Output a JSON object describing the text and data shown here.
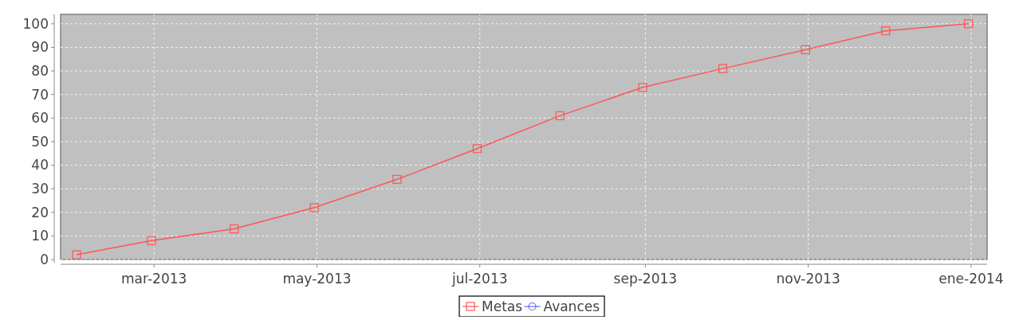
{
  "chart_data": {
    "type": "line",
    "x": [
      "2013-01-31",
      "2013-02-28",
      "2013-03-31",
      "2013-04-30",
      "2013-05-31",
      "2013-06-30",
      "2013-07-31",
      "2013-08-31",
      "2013-09-30",
      "2013-10-31",
      "2013-11-30",
      "2013-12-31"
    ],
    "series": [
      {
        "name": "Metas",
        "color": "#ff5555",
        "marker": "square",
        "values": [
          2,
          8,
          13,
          22,
          34,
          47,
          61,
          73,
          81,
          89,
          97,
          100
        ]
      },
      {
        "name": "Avances",
        "color": "#6666ff",
        "marker": "circle",
        "values": [
          null,
          null,
          null,
          null,
          null,
          null,
          null,
          null,
          null,
          null,
          null,
          null
        ]
      }
    ],
    "xlim": [
      "2013-01-25",
      "2014-01-07"
    ],
    "xticks": [
      {
        "value": "2013-03-01",
        "label": "mar-2013"
      },
      {
        "value": "2013-05-01",
        "label": "may-2013"
      },
      {
        "value": "2013-07-01",
        "label": "jul-2013"
      },
      {
        "value": "2013-09-01",
        "label": "sep-2013"
      },
      {
        "value": "2013-11-01",
        "label": "nov-2013"
      },
      {
        "value": "2014-01-01",
        "label": "ene-2014"
      }
    ],
    "ylim": [
      0,
      104
    ],
    "yticks": [
      0,
      10,
      20,
      30,
      40,
      50,
      60,
      70,
      80,
      90,
      100
    ],
    "grid": true,
    "legend": "bottom",
    "line_style": "solid"
  }
}
